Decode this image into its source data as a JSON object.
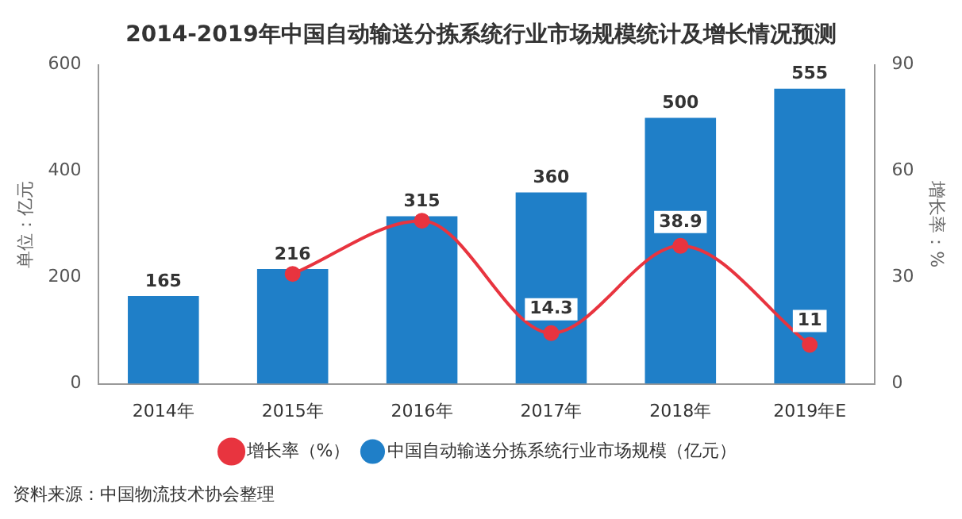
{
  "chart_data": {
    "type": "bar",
    "title": "2014-2019年中国自动输送分拣系统行业市场规模统计及增长情况预测",
    "categories": [
      "2014年",
      "2015年",
      "2016年",
      "2017年",
      "2018年",
      "2019年E"
    ],
    "series": [
      {
        "name": "中国自动输送分拣系统行业市场规模（亿元）",
        "color": "#1f7fc8",
        "values": [
          165,
          216,
          315,
          360,
          500,
          555
        ],
        "data_labels": true
      },
      {
        "name": "增长率（%）",
        "type": "line",
        "axis": "y2",
        "color": "#e8343f",
        "marker": "circle",
        "values": [
          null,
          31,
          46,
          14.3,
          38.9,
          11
        ],
        "value_labels": [
          null,
          null,
          null,
          "14.3",
          "38.9",
          "11"
        ]
      }
    ],
    "ylabel": "单位：亿元",
    "y2label": "增长率：%",
    "ylim": [
      0,
      600
    ],
    "yticks": [
      0,
      200,
      400,
      600
    ],
    "y2lim": [
      0,
      90
    ],
    "y2ticks": [
      0,
      30,
      60,
      90
    ],
    "grid": false,
    "legend": "bottom",
    "annotations": [
      "资料来源：中国物流技术协会整理"
    ]
  }
}
